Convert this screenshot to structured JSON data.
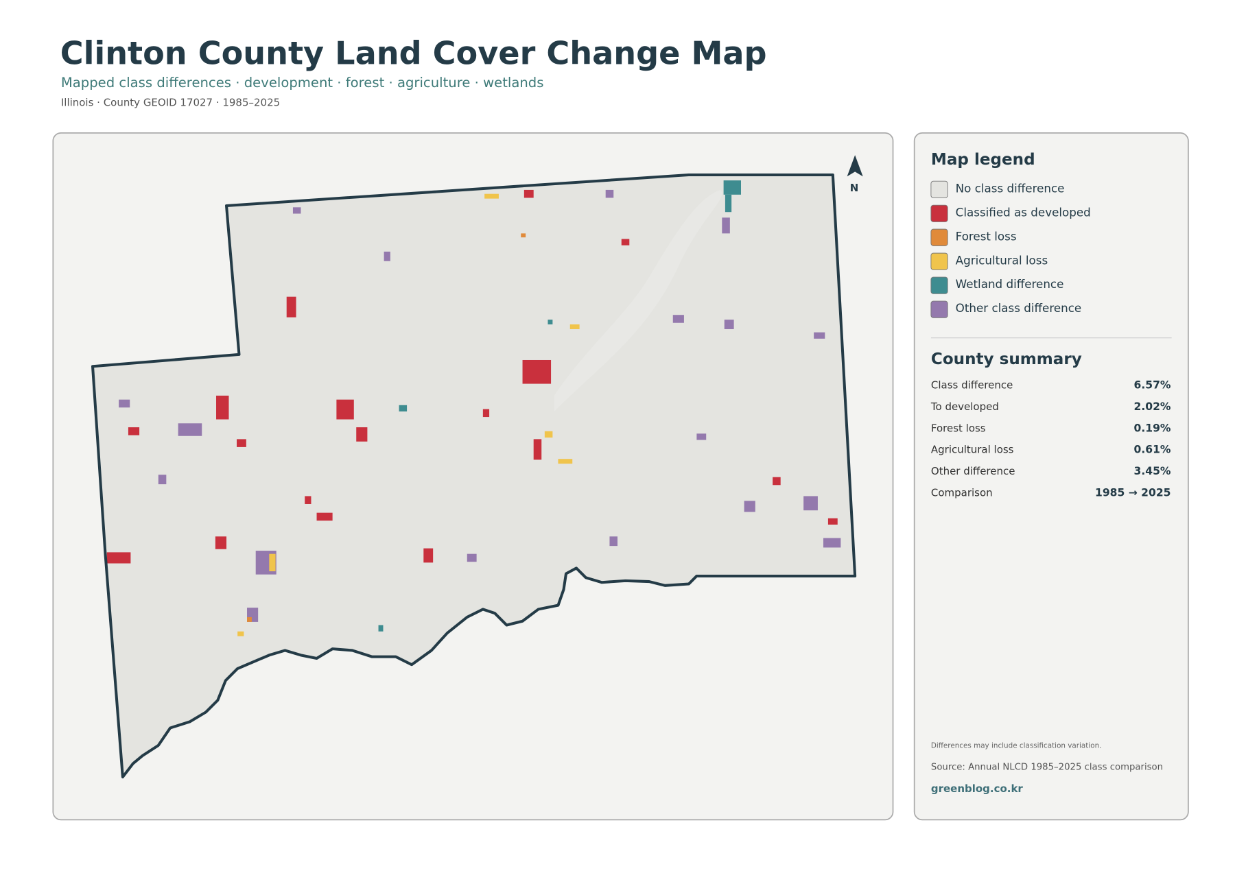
{
  "header": {
    "title": "Clinton County Land Cover Change Map",
    "subtitle": "Mapped class differences · development · forest · agriculture · wetlands",
    "meta": "Illinois · County GEOID 17027 · 1985–2025"
  },
  "map": {
    "north_label": "N"
  },
  "legend": {
    "title": "Map legend",
    "items": [
      {
        "label": "No class difference",
        "color": "#e4e4e0"
      },
      {
        "label": "Classified as developed",
        "color": "#c9303d"
      },
      {
        "label": "Forest loss",
        "color": "#e08a3a"
      },
      {
        "label": "Agricultural loss",
        "color": "#f0c44c"
      },
      {
        "label": "Wetland difference",
        "color": "#3e8c90"
      },
      {
        "label": "Other class difference",
        "color": "#9479ad"
      }
    ]
  },
  "summary": {
    "title": "County summary",
    "rows": [
      {
        "label": "Class difference",
        "value": "6.57%"
      },
      {
        "label": "To developed",
        "value": "2.02%"
      },
      {
        "label": "Forest loss",
        "value": "0.19%"
      },
      {
        "label": "Agricultural loss",
        "value": "0.61%"
      },
      {
        "label": "Other difference",
        "value": "3.45%"
      },
      {
        "label": "Comparison",
        "value": "1985 → 2025"
      }
    ]
  },
  "footer": {
    "note": "Differences may include classification variation.",
    "source": "Source: Annual NLCD 1985–2025 class comparison",
    "site": "greenblog.co.kr"
  }
}
